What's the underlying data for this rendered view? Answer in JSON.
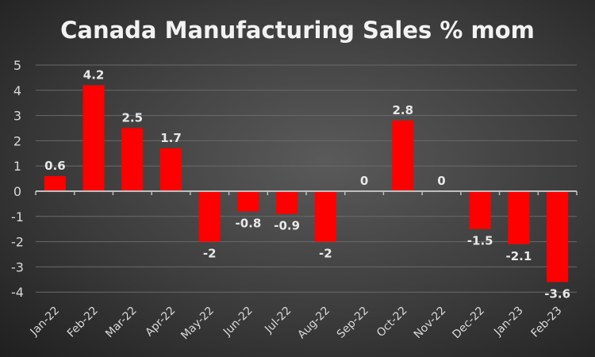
{
  "chart_data": {
    "type": "bar",
    "title": "Canada Manufacturing Sales % mom",
    "xlabel": "",
    "ylabel": "",
    "categories": [
      "Jan-22",
      "Feb-22",
      "Mar-22",
      "Apr-22",
      "May-22",
      "Jun-22",
      "Jul-22",
      "Aug-22",
      "Sep-22",
      "Oct-22",
      "Nov-22",
      "Dec-22",
      "Jan-23",
      "Feb-23"
    ],
    "values": [
      0.6,
      4.2,
      2.5,
      1.7,
      -2,
      -0.8,
      -0.9,
      -2,
      0,
      2.8,
      0,
      -1.5,
      -2.1,
      -3.6
    ],
    "ylim": [
      -4,
      5
    ],
    "yticks": [
      5,
      4,
      3,
      2,
      1,
      0,
      -1,
      -2,
      -3,
      -4
    ],
    "grid": true,
    "legend": "none",
    "bar_color": "#ff0000"
  }
}
